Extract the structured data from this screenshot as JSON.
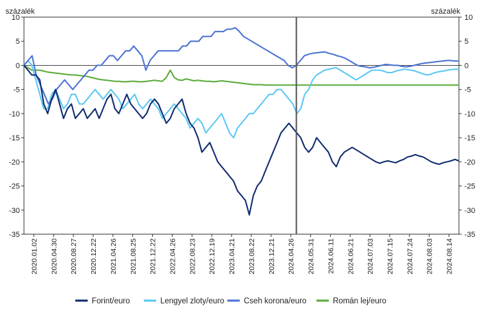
{
  "chart_data": {
    "type": "line",
    "ylabel_left": "százalék",
    "ylabel_right": "százalék",
    "ylim": [
      -35,
      10
    ],
    "yticks": [
      10,
      5,
      0,
      -5,
      -10,
      -15,
      -20,
      -25,
      -30,
      -35
    ],
    "grid": false,
    "legend_position": "bottom",
    "x_ticks": [
      "2020.01.02",
      "2020.04.30",
      "2020.08.27",
      "2020.12.22",
      "2021.04.26",
      "2021.08.25",
      "2021.12.22",
      "2022.04.26",
      "2022.08.23",
      "2022.12.19",
      "2023.04.21",
      "2023.08.22",
      "2023.12.21",
      "2024.04.26",
      "2024.05.31",
      "2024.06.11",
      "2024.06.21",
      "2024.07.03",
      "2024.07.15",
      "2024.07.24",
      "2024.08.03",
      "2024.08.14"
    ],
    "marker_line_at": "2024.04.26",
    "colors": {
      "forint": "#0e2a6e",
      "zloty": "#5bc8f2",
      "korona": "#4a72d4",
      "lej": "#5aab3c",
      "marker": "#555555",
      "axis": "#333333"
    },
    "series": [
      {
        "name": "Forint/euro",
        "key": "forint",
        "values": [
          0,
          -1,
          -2,
          -2,
          -3,
          -8,
          -10,
          -7,
          -5,
          -8,
          -11,
          -9,
          -8,
          -11,
          -10,
          -9,
          -11,
          -10,
          -9,
          -11,
          -9,
          -7,
          -6,
          -9,
          -10,
          -8,
          -6,
          -8,
          -9,
          -10,
          -11,
          -10,
          -8,
          -7,
          -8,
          -10,
          -12,
          -11,
          -9,
          -8,
          -7,
          -10,
          -12,
          -13,
          -15,
          -18,
          -17,
          -16,
          -18,
          -20,
          -21,
          -22,
          -23,
          -24,
          -26,
          -27,
          -28,
          -31,
          -27,
          -25,
          -24,
          -22,
          -20,
          -18,
          -16,
          -14,
          -13,
          -12,
          -13,
          -14,
          -15,
          -17,
          -18,
          -17,
          -15,
          -16,
          -17,
          -18,
          -20,
          -21,
          -19,
          -18,
          -17.5,
          -17,
          -17.5,
          -18,
          -18.5,
          -19,
          -19.5,
          -20,
          -20.3,
          -20,
          -19.8,
          -20,
          -20.2,
          -19.8,
          -19.5,
          -19,
          -18.8,
          -18.5,
          -18.8,
          -19,
          -19.5,
          -20,
          -20.3,
          -20.5,
          -20.2,
          -20,
          -19.8,
          -19.5,
          -19.8
        ]
      },
      {
        "name": "Lengyel zloty/euro",
        "key": "zloty",
        "values": [
          0,
          1,
          0,
          -3,
          -6,
          -9,
          -9,
          -6,
          -5,
          -7,
          -9,
          -8,
          -6,
          -6,
          -8,
          -8,
          -7,
          -6,
          -5,
          -6,
          -7,
          -6,
          -5,
          -6,
          -7,
          -9,
          -8,
          -7,
          -6,
          -8,
          -9,
          -8,
          -7,
          -8,
          -9,
          -11,
          -10,
          -9,
          -8,
          -9,
          -10,
          -11,
          -13,
          -12,
          -11,
          -12,
          -14,
          -13,
          -12,
          -11,
          -10,
          -12,
          -14,
          -15,
          -13,
          -12,
          -11,
          -10,
          -10,
          -9,
          -8,
          -7,
          -6,
          -6,
          -5,
          -5,
          -6,
          -7,
          -8,
          -10,
          -9,
          -6,
          -5,
          -3,
          -2,
          -1.5,
          -1,
          -0.8,
          -0.6,
          -0.5,
          -1,
          -1.5,
          -2,
          -2.5,
          -3,
          -2.5,
          -2,
          -1.5,
          -1,
          -1,
          -1,
          -1.2,
          -1.5,
          -1.5,
          -1.2,
          -1,
          -0.8,
          -0.9,
          -1,
          -1.2,
          -1.5,
          -1.8,
          -2,
          -1.8,
          -1.5,
          -1.3,
          -1.2,
          -1,
          -0.9,
          -0.8,
          -0.8
        ]
      },
      {
        "name": "Cseh korona/euro",
        "key": "korona",
        "values": [
          0,
          1,
          2,
          -2,
          -4,
          -6,
          -8,
          -7,
          -5,
          -4,
          -3,
          -4,
          -5,
          -4,
          -3,
          -2,
          -1,
          -1,
          0,
          0,
          1,
          2,
          2,
          1,
          2,
          3,
          3,
          4,
          3,
          2,
          -1,
          1,
          2,
          3,
          3,
          3,
          3,
          3,
          3,
          4,
          4,
          5,
          5,
          5,
          6,
          6,
          6,
          7,
          7,
          7,
          7.5,
          7.5,
          7.8,
          7,
          6,
          5.5,
          5,
          4.5,
          4,
          3.5,
          3,
          2.5,
          2,
          1.5,
          1,
          0,
          -0.5,
          0,
          1,
          2,
          2.3,
          2.5,
          2.6,
          2.7,
          2.8,
          2.5,
          2.3,
          2,
          1.8,
          1.5,
          1,
          0.5,
          0,
          -0.2,
          -0.3,
          -0.5,
          -0.4,
          -0.2,
          0,
          0.2,
          0.1,
          0,
          0,
          -0.2,
          -0.3,
          -0.2,
          0,
          0.2,
          0.4,
          0.5,
          0.6,
          0.7,
          0.8,
          0.9,
          1,
          1,
          0.9,
          0.9
        ]
      },
      {
        "name": "Román lej/euro",
        "key": "lej",
        "values": [
          0,
          -0.5,
          -1,
          -1,
          -1,
          -1.2,
          -1.4,
          -1.5,
          -1.6,
          -1.7,
          -1.8,
          -1.9,
          -2,
          -2,
          -2.1,
          -2.2,
          -2.3,
          -2.5,
          -2.7,
          -2.9,
          -3,
          -3.1,
          -3.2,
          -3.3,
          -3.3,
          -3.4,
          -3.4,
          -3.3,
          -3.3,
          -3.4,
          -3.4,
          -3.3,
          -3.2,
          -3.1,
          -3.2,
          -3.3,
          -2.5,
          -1,
          -2.5,
          -3,
          -3.1,
          -2.8,
          -3,
          -3.2,
          -3.1,
          -3.2,
          -3.3,
          -3.3,
          -3.4,
          -3.3,
          -3.2,
          -3.3,
          -3.4,
          -3.5,
          -3.6,
          -3.7,
          -3.8,
          -3.9,
          -4,
          -4,
          -4,
          -4.1,
          -4.1,
          -4.1,
          -4.1,
          -4.1,
          -4.1,
          -4.1,
          -4.1,
          -4.1,
          -4.1,
          -4.1,
          -4.1,
          -4.1,
          -4.1,
          -4.1,
          -4.1,
          -4.1,
          -4.1,
          -4.1,
          -4.1,
          -4.1,
          -4.1,
          -4.1,
          -4.1,
          -4.1,
          -4.1,
          -4.1,
          -4.1,
          -4.1,
          -4.1,
          -4.1,
          -4.1,
          -4.1,
          -4.1,
          -4.1,
          -4.1,
          -4.1,
          -4.1,
          -4.1,
          -4.1,
          -4.1,
          -4.1,
          -4.1,
          -4.1,
          -4.1,
          -4.1,
          -4.1,
          -4.1,
          -4.1,
          -4.1
        ]
      }
    ]
  }
}
